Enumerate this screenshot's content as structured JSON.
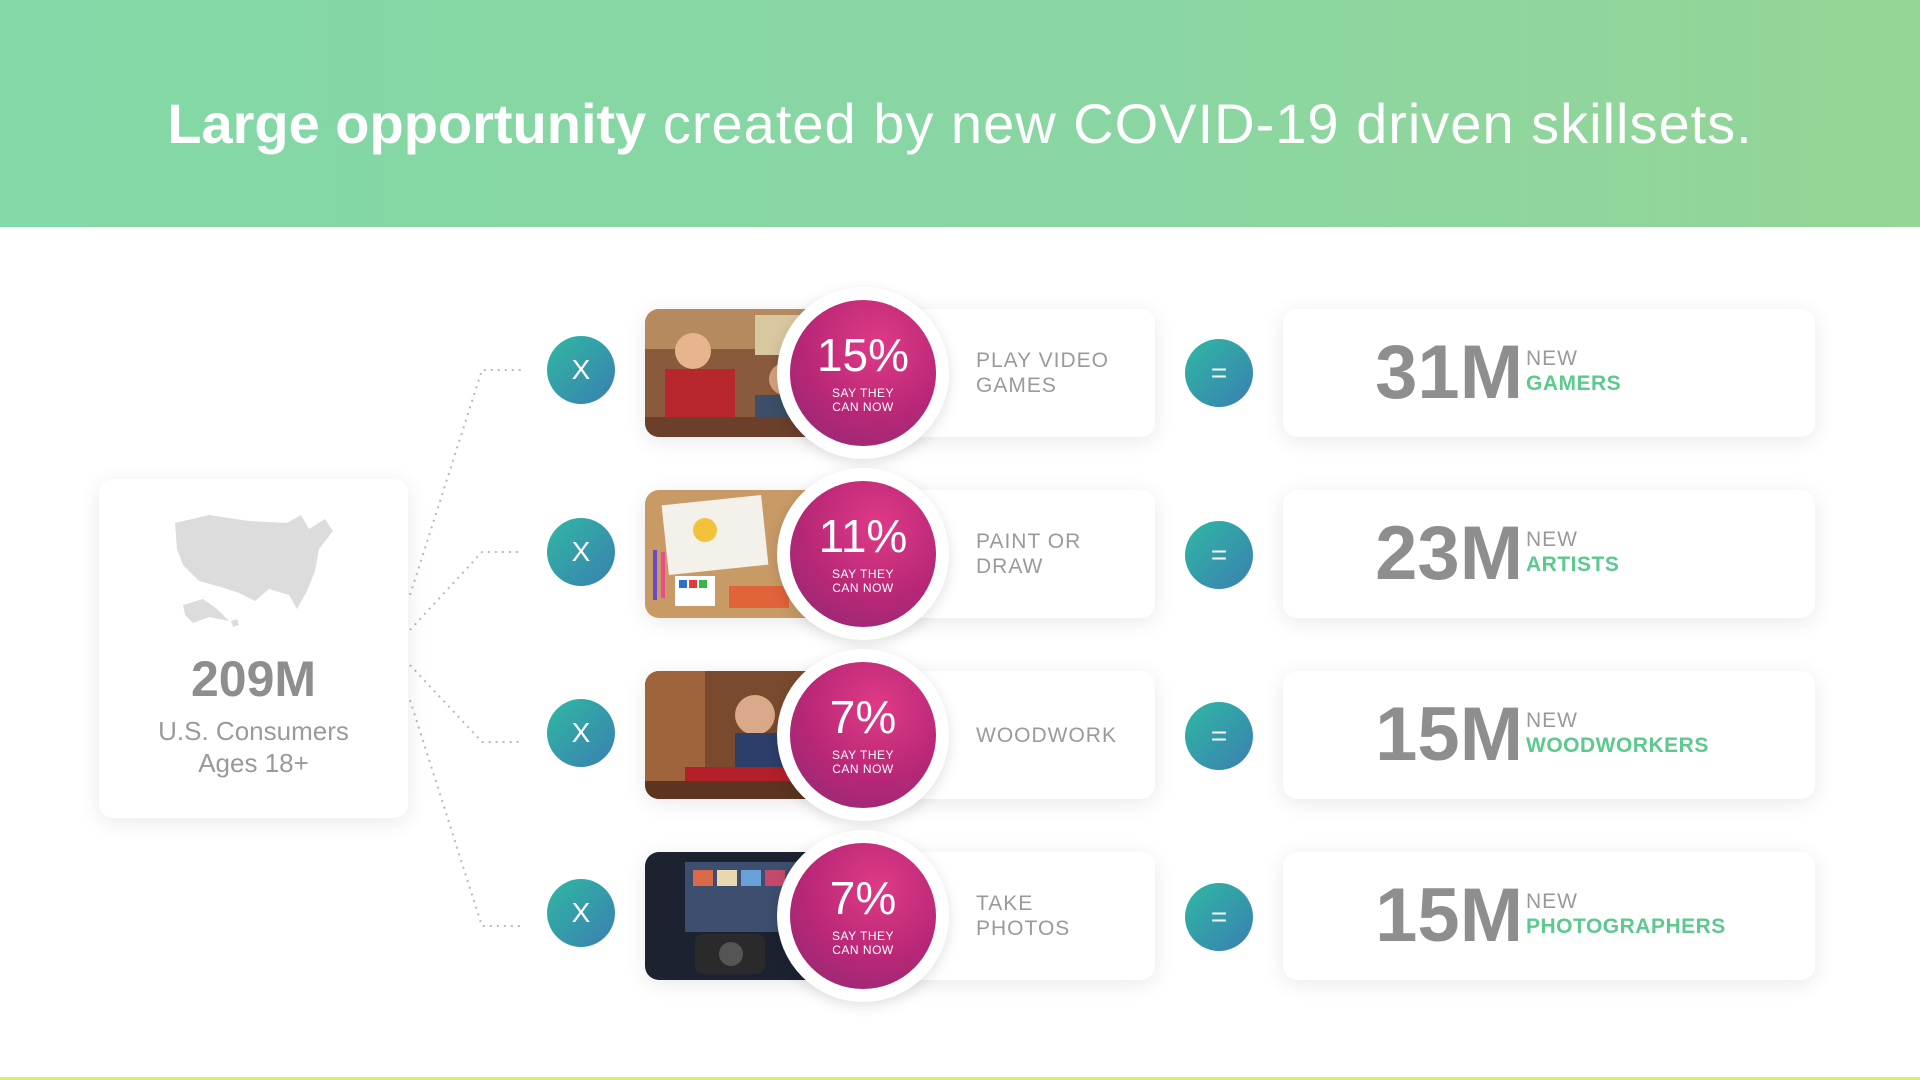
{
  "title": {
    "bold": "Large opportunity",
    "light": " created by new COVID-19 driven skillsets."
  },
  "source": {
    "value": "209M",
    "label_line1": "U.S. Consumers",
    "label_line2": "Ages 18+",
    "icon": "usa-map-icon"
  },
  "operators": {
    "multiply": "X",
    "equals": "="
  },
  "rows": [
    {
      "percent": "15%",
      "note_line1": "SAY THEY",
      "note_line2": "CAN NOW",
      "activity_line1": "PLAY VIDEO",
      "activity_line2": "GAMES",
      "result": "31M",
      "result_prefix": "NEW",
      "result_label": "GAMERS",
      "photo": "gaming-photo"
    },
    {
      "percent": "11%",
      "note_line1": "SAY THEY",
      "note_line2": "CAN NOW",
      "activity_line1": "PAINT OR",
      "activity_line2": "DRAW",
      "result": "23M",
      "result_prefix": "NEW",
      "result_label": "ARTISTS",
      "photo": "painting-photo"
    },
    {
      "percent": "7%",
      "note_line1": "SAY THEY",
      "note_line2": "CAN NOW",
      "activity_line1": "WOODWORK",
      "activity_line2": "",
      "result": "15M",
      "result_prefix": "NEW",
      "result_label": "WOODWORKERS",
      "photo": "woodwork-photo"
    },
    {
      "percent": "7%",
      "note_line1": "SAY THEY",
      "note_line2": "CAN NOW",
      "activity_line1": "TAKE",
      "activity_line2": "PHOTOS",
      "result": "15M",
      "result_prefix": "NEW",
      "result_label": "PHOTOGRAPHERS",
      "photo": "photography-photo"
    }
  ],
  "colors": {
    "banner": "#86d7a3",
    "accent_green": "#5cc98e",
    "percent_magenta": "#c42a7c",
    "operator_teal": "#2fb8a3"
  }
}
